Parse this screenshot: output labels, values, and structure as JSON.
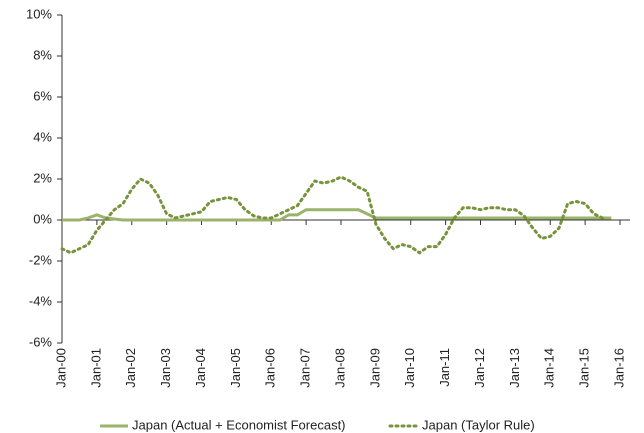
{
  "chart_data": {
    "type": "line",
    "categories": [
      "Jan-00",
      "Jan-01",
      "Jan-02",
      "Jan-03",
      "Jan-04",
      "Jan-05",
      "Jan-06",
      "Jan-07",
      "Jan-08",
      "Jan-09",
      "Jan-10",
      "Jan-11",
      "Jan-12",
      "Jan-13",
      "Jan-14",
      "Jan-15",
      "Jan-16"
    ],
    "x": [
      "Jan-00",
      "Apr-00",
      "Jul-00",
      "Oct-00",
      "Jan-01",
      "Apr-01",
      "Jul-01",
      "Oct-01",
      "Jan-02",
      "Apr-02",
      "Jul-02",
      "Oct-02",
      "Jan-03",
      "Apr-03",
      "Jul-03",
      "Oct-03",
      "Jan-04",
      "Apr-04",
      "Jul-04",
      "Oct-04",
      "Jan-05",
      "Apr-05",
      "Jul-05",
      "Oct-05",
      "Jan-06",
      "Apr-06",
      "Jul-06",
      "Oct-06",
      "Jan-07",
      "Apr-07",
      "Jul-07",
      "Oct-07",
      "Jan-08",
      "Apr-08",
      "Jul-08",
      "Oct-08",
      "Jan-09",
      "Apr-09",
      "Jul-09",
      "Oct-09",
      "Jan-10",
      "Apr-10",
      "Jul-10",
      "Oct-10",
      "Jan-11",
      "Apr-11",
      "Jul-11",
      "Oct-11",
      "Jan-12",
      "Apr-12",
      "Jul-12",
      "Oct-12",
      "Jan-13",
      "Apr-13",
      "Jul-13",
      "Oct-13",
      "Jan-14",
      "Apr-14",
      "Jul-14",
      "Oct-14",
      "Jan-15",
      "Apr-15",
      "Jul-15",
      "Oct-15"
    ],
    "series": [
      {
        "name": "Japan (Actual + Economist Forecast)",
        "color": "#9bb36b",
        "dash": "solid",
        "values": [
          0,
          0,
          0,
          0.1,
          0.25,
          0.1,
          0.05,
          0,
          0,
          0,
          0,
          0,
          0,
          0,
          0,
          0,
          0,
          0,
          0,
          0,
          0,
          0,
          0,
          0,
          0,
          0,
          0.25,
          0.25,
          0.5,
          0.5,
          0.5,
          0.5,
          0.5,
          0.5,
          0.5,
          0.3,
          0.1,
          0.1,
          0.1,
          0.1,
          0.1,
          0.1,
          0.1,
          0.1,
          0.1,
          0.1,
          0.1,
          0.1,
          0.1,
          0.1,
          0.1,
          0.1,
          0.1,
          0.1,
          0.1,
          0.1,
          0.1,
          0.1,
          0.1,
          0.1,
          0.1,
          0.1,
          0.1,
          0.1
        ]
      },
      {
        "name": "Japan (Taylor Rule)",
        "color": "#77933c",
        "dash": "dotted",
        "values": [
          -1.4,
          -1.6,
          -1.4,
          -1.2,
          -0.5,
          0,
          0.5,
          0.8,
          1.5,
          2.0,
          1.8,
          1.2,
          0.3,
          0.1,
          0.2,
          0.3,
          0.4,
          0.9,
          1.0,
          1.1,
          1.0,
          0.5,
          0.2,
          0.1,
          0.1,
          0.3,
          0.5,
          0.7,
          1.3,
          1.9,
          1.8,
          1.9,
          2.1,
          1.9,
          1.6,
          1.4,
          -0.2,
          -0.9,
          -1.4,
          -1.2,
          -1.3,
          -1.6,
          -1.3,
          -1.3,
          -0.7,
          0.1,
          0.6,
          0.6,
          0.5,
          0.6,
          0.6,
          0.5,
          0.5,
          0.2,
          -0.4,
          -0.9,
          -0.8,
          -0.4,
          0.8,
          0.9,
          0.8,
          0.3,
          0.1,
          null
        ]
      }
    ],
    "ylim": [
      -6,
      10
    ],
    "yticks": [
      {
        "value": -6,
        "label": "-6%"
      },
      {
        "value": -4,
        "label": "-4%"
      },
      {
        "value": -2,
        "label": "-2%"
      },
      {
        "value": 0,
        "label": "0%"
      },
      {
        "value": 2,
        "label": "2%"
      },
      {
        "value": 4,
        "label": "4%"
      },
      {
        "value": 6,
        "label": "6%"
      },
      {
        "value": 8,
        "label": "8%"
      },
      {
        "value": 10,
        "label": "10%"
      }
    ],
    "grid": false,
    "legend": "bottom"
  }
}
